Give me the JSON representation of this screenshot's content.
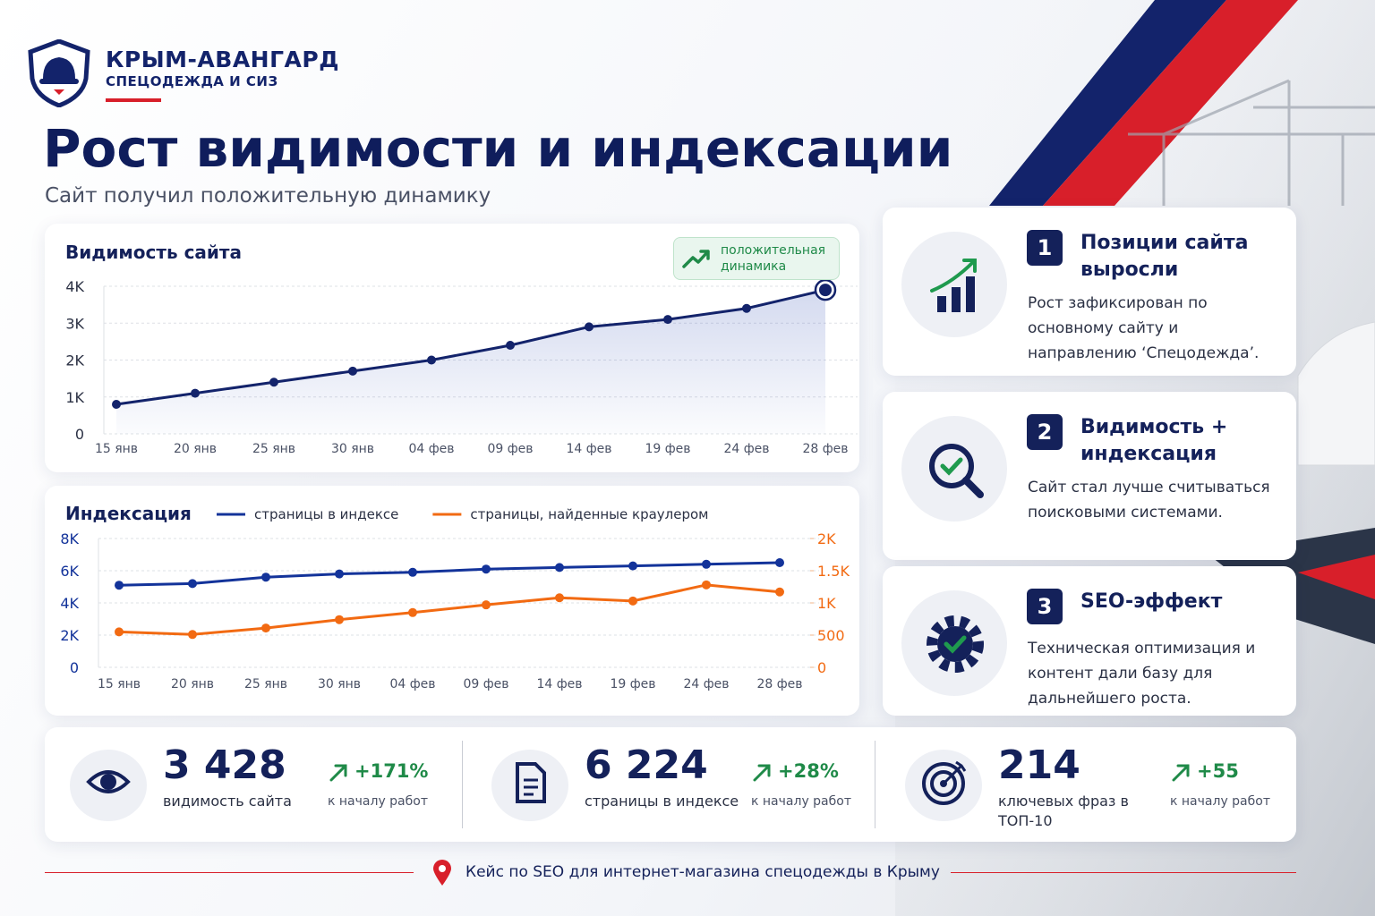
{
  "header": {
    "brand": "КРЫМ-АВАНГАРД",
    "tagline": "СПЕЦОДЕЖДА И СИЗ",
    "title": "Рост видимости и индексации",
    "subtitle": "Сайт получил положительную динамику"
  },
  "chart_data": [
    {
      "type": "line",
      "title": "Видимость сайта",
      "annotation": "положительная динамика",
      "categories": [
        "15 янв",
        "20 янв",
        "25 янв",
        "30 янв",
        "04 фев",
        "09 фев",
        "14 фев",
        "19 фев",
        "24 фев",
        "28 фев"
      ],
      "series": [
        {
          "color": "#13236b",
          "values": [
            800,
            1100,
            1400,
            1700,
            2000,
            2400,
            2900,
            3100,
            3400,
            3900
          ]
        }
      ],
      "ylim": [
        0,
        4000
      ],
      "yticks": [
        0,
        {
          "value": 1000,
          "label": "1K"
        },
        {
          "value": 2000,
          "label": "2K"
        },
        {
          "value": 3000,
          "label": "3K"
        },
        {
          "value": 4000,
          "label": "4K"
        }
      ],
      "grid": true
    },
    {
      "type": "line",
      "title": "Индексация",
      "categories": [
        "15 янв",
        "20 янв",
        "25 янв",
        "30 янв",
        "04 фев",
        "09 фев",
        "14 фев",
        "19 фев",
        "24 фев",
        "28 фев"
      ],
      "series": [
        {
          "name": "страницы в индексе",
          "color": "#13339a",
          "values": [
            5100,
            5200,
            5600,
            5800,
            5900,
            6100,
            6200,
            6300,
            6400,
            6500
          ]
        },
        {
          "name": "страницы, найденные краулером",
          "color": "#f26a12",
          "axis": "y2",
          "values": [
            550,
            510,
            610,
            740,
            850,
            970,
            1080,
            1030,
            1280,
            1170
          ]
        }
      ],
      "ylim": [
        0,
        8000
      ],
      "yticks": [
        0,
        {
          "value": 2000,
          "label": "2K"
        },
        {
          "value": 4000,
          "label": "4K"
        },
        {
          "value": 6000,
          "label": "6K"
        },
        {
          "value": 8000,
          "label": "8K"
        }
      ],
      "y2lim": [
        0,
        2000
      ],
      "y2ticks": [
        0,
        500,
        {
          "value": 1000,
          "label": "1K"
        },
        {
          "value": 1500,
          "label": "1.5K"
        },
        {
          "value": 2000,
          "label": "2K"
        }
      ],
      "grid": true
    }
  ],
  "cards": [
    {
      "number": "1",
      "title": "Позиции сайта выросли",
      "text": "Рост зафиксирован по основному сайту и направлению ‘Спецодежда’."
    },
    {
      "number": "2",
      "title": "Видимость + индексация",
      "text": "Сайт стал лучше считываться поисковыми системами."
    },
    {
      "number": "3",
      "title": "SEO-эффект",
      "text": "Техническая оптимизация и контент дали базу для дальнейшего роста."
    }
  ],
  "stats": [
    {
      "value": "3 428",
      "label": "видимость сайта",
      "change": "+171%",
      "note": "к началу работ"
    },
    {
      "value": "6 224",
      "label": "страницы в индексе",
      "change": "+28%",
      "note": "к началу работ"
    },
    {
      "value": "214",
      "label": "ключевых фраз в ТОП-10",
      "change": "+55",
      "note": "к началу работ"
    }
  ],
  "footer": "Кейс по SEO для интернет-магазина спецодежды в Крыму"
}
